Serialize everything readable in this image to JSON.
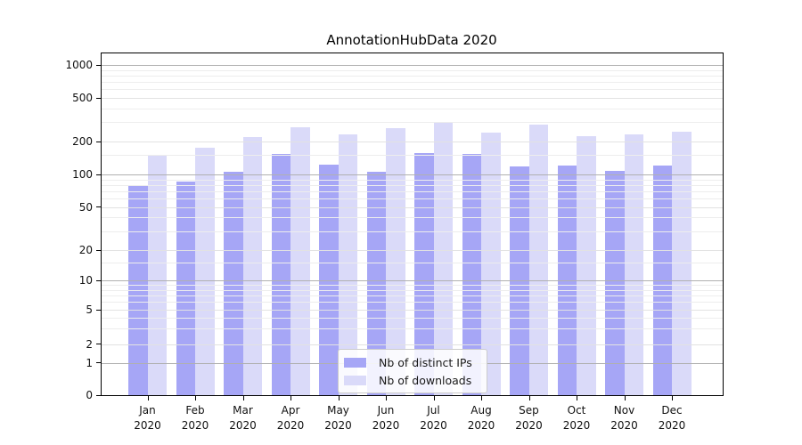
{
  "chart_data": {
    "type": "bar",
    "title": "AnnotationHubData 2020",
    "categories": [
      "Jan",
      "Feb",
      "Mar",
      "Apr",
      "May",
      "Jun",
      "Jul",
      "Aug",
      "Sep",
      "Oct",
      "Nov",
      "Dec"
    ],
    "category_year": "2020",
    "series": [
      {
        "name": "Nb of distinct IPs",
        "color": "#a6a6f6",
        "values": [
          78,
          86,
          106,
          154,
          123,
          105,
          158,
          154,
          119,
          121,
          108,
          121
        ]
      },
      {
        "name": "Nb of downloads",
        "color": "#dadaf9",
        "values": [
          148,
          175,
          218,
          270,
          232,
          265,
          295,
          242,
          285,
          222,
          234,
          244
        ]
      }
    ],
    "yaxis": {
      "scale": "symlog",
      "tick_values": [
        0,
        1,
        2,
        5,
        10,
        20,
        50,
        100,
        200,
        500,
        1000
      ],
      "tick_labels": [
        "0",
        "1",
        "2",
        "5",
        "10",
        "20",
        "50",
        "100",
        "200",
        "500",
        "1000"
      ],
      "minor_gridline_values": [
        3,
        4,
        6,
        7,
        8,
        9,
        15,
        30,
        40,
        60,
        70,
        80,
        90,
        150,
        300,
        400,
        600,
        700,
        800,
        900
      ]
    },
    "legend": {
      "entries": [
        "Nb of distinct IPs",
        "Nb of downloads"
      ],
      "position": "inside-bottom-center"
    },
    "grid": {
      "major": true,
      "minor": true,
      "drawn_over_bars": true
    },
    "colors": {
      "major_gridline_power10": "#b0b0b0",
      "major_gridline_other": "#e2e2e2",
      "minor_gridline": "#ededed",
      "axis": "#000000"
    }
  }
}
